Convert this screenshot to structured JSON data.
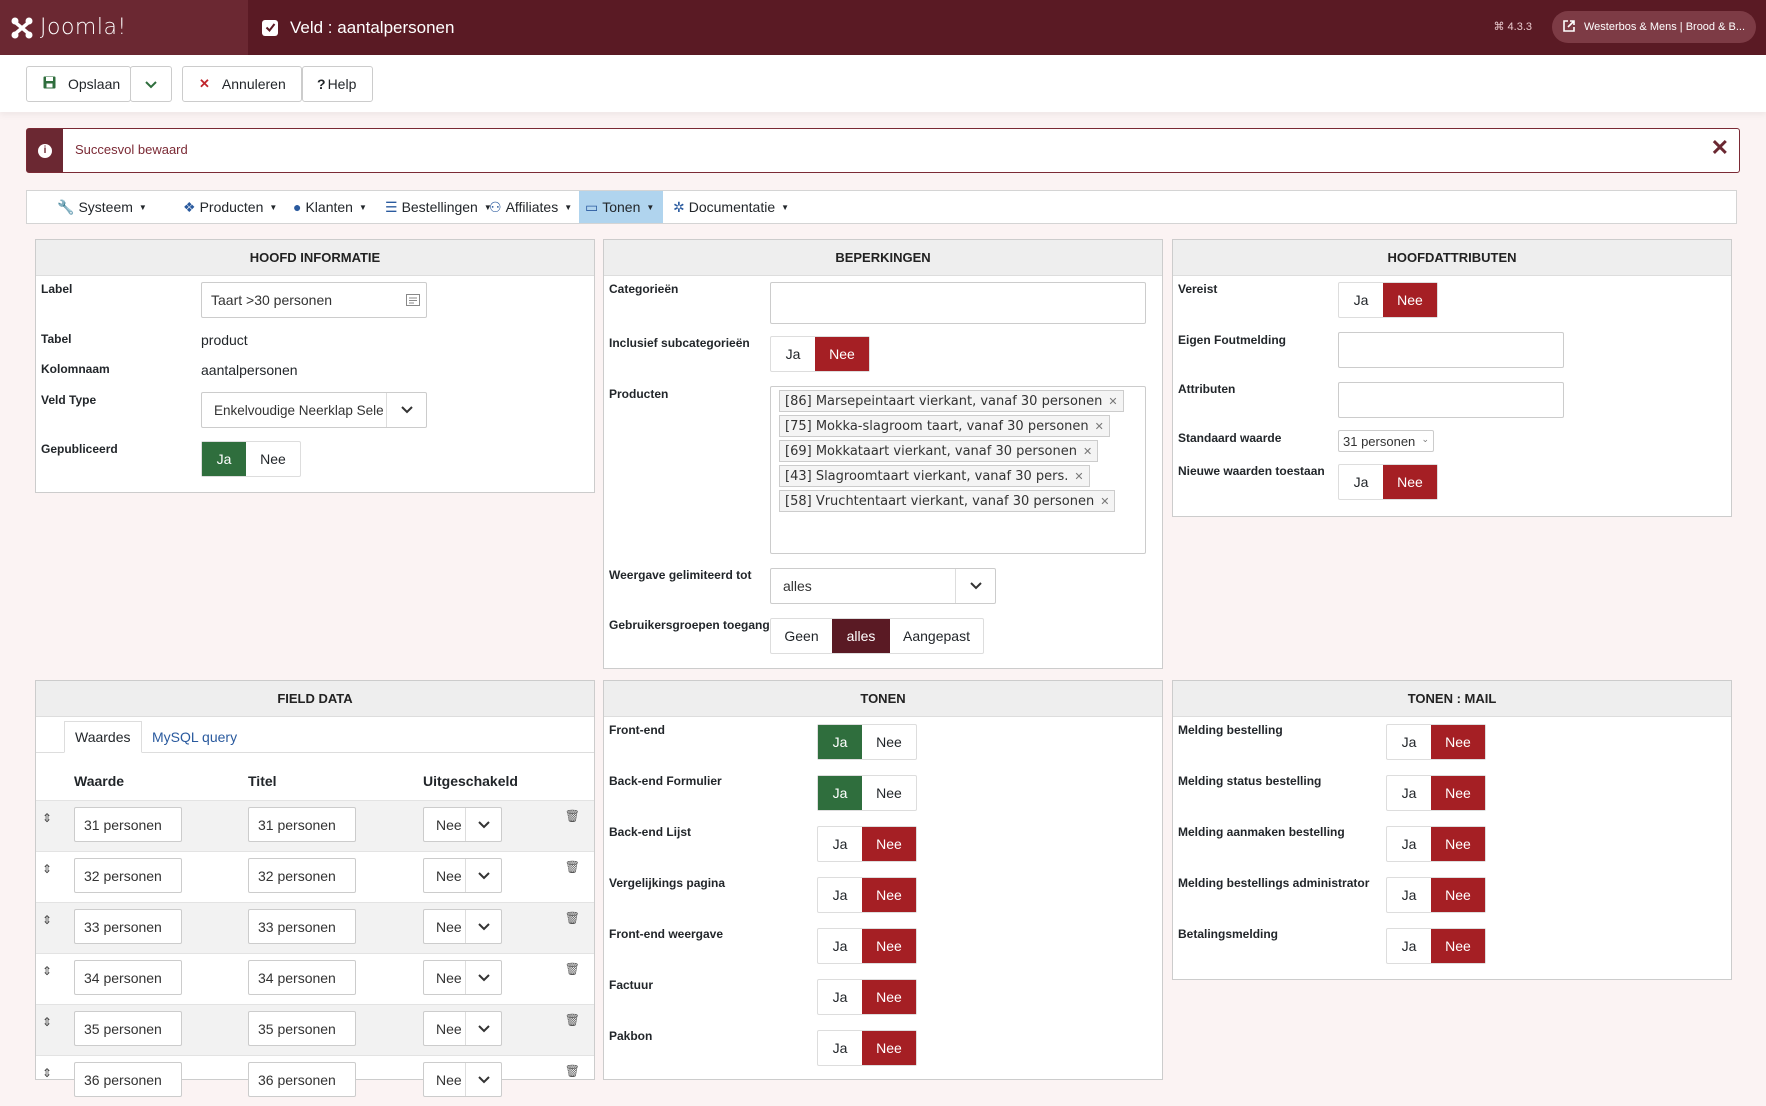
{
  "header": {
    "brand": "Joomla!",
    "title": "Veld : aantalpersonen",
    "version": "4.3.3",
    "site_label": "Westerbos & Mens | Brood & B..."
  },
  "toolbar": {
    "save_label": "Opslaan",
    "cancel_label": "Annuleren",
    "help_label": "Help"
  },
  "alert": {
    "message": "Succesvol bewaard",
    "close": "✕"
  },
  "menu": [
    {
      "label": "Systeem",
      "icon": "wrench-icon"
    },
    {
      "label": "Producten",
      "icon": "cubes-icon"
    },
    {
      "label": "Klanten",
      "icon": "user-icon"
    },
    {
      "label": "Bestellingen",
      "icon": "list-icon"
    },
    {
      "label": "Affiliates",
      "icon": "users-icon"
    },
    {
      "label": "Tonen",
      "icon": "desktop-icon",
      "active": true
    },
    {
      "label": "Documentatie",
      "icon": "joomla-icon"
    }
  ],
  "hoofd": {
    "title": "HOOFD INFORMATIE",
    "label_lbl": "Label",
    "label_val": "Taart >30 personen",
    "tabel_lbl": "Tabel",
    "tabel_val": "product",
    "kolom_lbl": "Kolomnaam",
    "kolom_val": "aantalpersonen",
    "veldtype_lbl": "Veld Type",
    "veldtype_val": "Enkelvoudige Neerklap Sele",
    "gepub_lbl": "Gepubliceerd",
    "ja": "Ja",
    "nee": "Nee"
  },
  "beperkingen": {
    "title": "BEPERKINGEN",
    "cat_lbl": "Categorieën",
    "incl_lbl": "Inclusief subcategorieën",
    "prod_lbl": "Producten",
    "products": [
      "[86] Marsepeintaart vierkant, vanaf 30 personen",
      "[75] Mokka-slagroom taart, vanaf 30 personen",
      "[69] Mokkataart vierkant, vanaf 30 personen",
      "[43] Slagroomtaart vierkant, vanaf 30 pers.",
      "[58] Vruchtentaart vierkant, vanaf 30 personen"
    ],
    "weergave_lbl": "Weergave gelimiteerd tot",
    "weergave_val": "alles",
    "groepen_lbl": "Gebruikersgroepen toegang",
    "groepen_opts": [
      "Geen",
      "alles",
      "Aangepast"
    ],
    "ja": "Ja",
    "nee": "Nee"
  },
  "hoofdattr": {
    "title": "HOOFDATTRIBUTEN",
    "vereist_lbl": "Vereist",
    "fout_lbl": "Eigen Foutmelding",
    "attr_lbl": "Attributen",
    "std_lbl": "Standaard waarde",
    "std_val": "31 personen",
    "nieuw_lbl": "Nieuwe waarden toestaan",
    "ja": "Ja",
    "nee": "Nee"
  },
  "fielddata": {
    "title": "FIELD DATA",
    "tab1": "Waardes",
    "tab2": "MySQL query",
    "col_waarde": "Waarde",
    "col_titel": "Titel",
    "col_uit": "Uitgeschakeld",
    "rows": [
      {
        "waarde": "31 personen",
        "titel": "31 personen",
        "uit": "Nee"
      },
      {
        "waarde": "32 personen",
        "titel": "32 personen",
        "uit": "Nee"
      },
      {
        "waarde": "33 personen",
        "titel": "33 personen",
        "uit": "Nee"
      },
      {
        "waarde": "34 personen",
        "titel": "34 personen",
        "uit": "Nee"
      },
      {
        "waarde": "35 personen",
        "titel": "35 personen",
        "uit": "Nee"
      },
      {
        "waarde": "36 personen",
        "titel": "36 personen",
        "uit": "Nee"
      }
    ]
  },
  "tonen": {
    "title": "TONEN",
    "rows": [
      {
        "label": "Front-end",
        "ja": "Ja",
        "nee": "Nee",
        "value": "Ja"
      },
      {
        "label": "Back-end Formulier",
        "ja": "Ja",
        "nee": "Nee",
        "value": "Ja"
      },
      {
        "label": "Back-end Lijst",
        "ja": "Ja",
        "nee": "Nee",
        "value": "Nee"
      },
      {
        "label": "Vergelijkings pagina",
        "ja": "Ja",
        "nee": "Nee",
        "value": "Nee"
      },
      {
        "label": "Front-end weergave",
        "ja": "Ja",
        "nee": "Nee",
        "value": "Nee"
      },
      {
        "label": "Factuur",
        "ja": "Ja",
        "nee": "Nee",
        "value": "Nee"
      },
      {
        "label": "Pakbon",
        "ja": "Ja",
        "nee": "Nee",
        "value": "Nee"
      }
    ]
  },
  "tonenmail": {
    "title": "TONEN : MAIL",
    "rows": [
      {
        "label": "Melding bestelling",
        "ja": "Ja",
        "nee": "Nee",
        "value": "Nee"
      },
      {
        "label": "Melding status bestelling",
        "ja": "Ja",
        "nee": "Nee",
        "value": "Nee"
      },
      {
        "label": "Melding aanmaken bestelling",
        "ja": "Ja",
        "nee": "Nee",
        "value": "Nee"
      },
      {
        "label": "Melding bestellings administrator",
        "ja": "Ja",
        "nee": "Nee",
        "value": "Nee"
      },
      {
        "label": "Betalingsmelding",
        "ja": "Ja",
        "nee": "Nee",
        "value": "Nee"
      }
    ]
  },
  "colors": {
    "brand": "#5a1a24",
    "green": "#2f6e3d",
    "red": "#a51f24"
  }
}
